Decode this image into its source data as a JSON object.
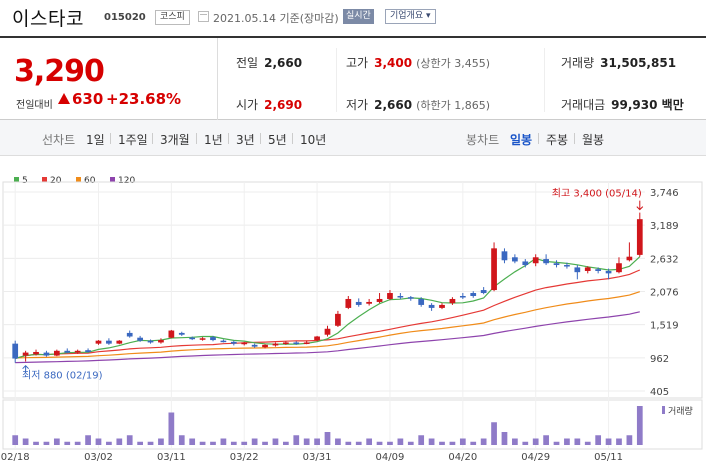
{
  "header": {
    "name": "이스타코",
    "code": "015020",
    "market": "코스피",
    "date": "2021.05.14 기준(장마감)",
    "realtime": "실시간",
    "company_info": "기업개요"
  },
  "quote": {
    "price": "3,290",
    "change_label": "전일대비",
    "change": "630",
    "change_pct": "+23.68%",
    "prev_close_label": "전일",
    "prev_close": "2,660",
    "high_label": "고가",
    "high": "3,400",
    "upper_limit": "(상한가 3,455)",
    "volume_label": "거래량",
    "volume": "31,505,851",
    "open_label": "시가",
    "open": "2,690",
    "low_label": "저가",
    "low": "2,660",
    "lower_limit": "(하한가 1,865)",
    "amount_label": "거래대금",
    "amount": "99,930 백만"
  },
  "tabs": {
    "line_label": "선차트",
    "periods": [
      "1일",
      "1주일",
      "3개월",
      "1년",
      "3년",
      "5년",
      "10년"
    ],
    "candle_label": "봉차트",
    "candle_periods": [
      "일봉",
      "주봉",
      "월봉"
    ],
    "active_candle": "일봉"
  },
  "colors": {
    "up": "#d0161b",
    "down": "#3a68c0",
    "ma5": "#4caf50",
    "ma20": "#e53935",
    "ma60": "#f08c1a",
    "ma120": "#8e44ad",
    "volume": "#8f7bc8"
  },
  "chart_data": {
    "type": "candlestick",
    "legend": [
      "5",
      "20",
      "60",
      "120"
    ],
    "volume_label": "거래량",
    "y_ticks": [
      "3,746",
      "3,189",
      "2,632",
      "2,076",
      "1,519",
      "962",
      "405"
    ],
    "ylim": [
      405,
      3746
    ],
    "x_labels": [
      "02/18",
      "03/02",
      "03/11",
      "03/22",
      "03/31",
      "04/09",
      "04/20",
      "04/29",
      "05/11"
    ],
    "x_label_index": [
      0,
      8,
      15,
      22,
      29,
      36,
      43,
      50,
      57
    ],
    "high_annotation": "최고 3,400 (05/14)",
    "low_annotation": "최저 880 (02/19)",
    "candles": [
      [
        1200,
        950,
        1250,
        880
      ],
      [
        1000,
        1050,
        1080,
        900
      ],
      [
        1020,
        1060,
        1100,
        1000
      ],
      [
        1050,
        1000,
        1080,
        980
      ],
      [
        1000,
        1080,
        1100,
        990
      ],
      [
        1080,
        1050,
        1120,
        1040
      ],
      [
        1050,
        1080,
        1100,
        1030
      ],
      [
        1090,
        1060,
        1120,
        1050
      ],
      [
        1200,
        1250,
        1260,
        1180
      ],
      [
        1250,
        1200,
        1290,
        1180
      ],
      [
        1200,
        1250,
        1260,
        1190
      ],
      [
        1380,
        1320,
        1420,
        1300
      ],
      [
        1300,
        1250,
        1330,
        1230
      ],
      [
        1250,
        1220,
        1270,
        1200
      ],
      [
        1220,
        1260,
        1290,
        1200
      ],
      [
        1300,
        1420,
        1430,
        1290
      ],
      [
        1380,
        1350,
        1400,
        1330
      ],
      [
        1300,
        1280,
        1320,
        1260
      ],
      [
        1270,
        1290,
        1310,
        1250
      ],
      [
        1310,
        1260,
        1330,
        1240
      ],
      [
        1250,
        1240,
        1270,
        1220
      ],
      [
        1230,
        1200,
        1250,
        1170
      ],
      [
        1190,
        1220,
        1230,
        1170
      ],
      [
        1180,
        1150,
        1200,
        1130
      ],
      [
        1140,
        1180,
        1190,
        1120
      ],
      [
        1170,
        1200,
        1220,
        1150
      ],
      [
        1200,
        1220,
        1240,
        1180
      ],
      [
        1220,
        1200,
        1240,
        1180
      ],
      [
        1210,
        1220,
        1250,
        1190
      ],
      [
        1260,
        1320,
        1330,
        1240
      ],
      [
        1350,
        1450,
        1500,
        1320
      ],
      [
        1500,
        1700,
        1750,
        1480
      ],
      [
        1800,
        1950,
        2000,
        1780
      ],
      [
        1900,
        1850,
        1960,
        1820
      ],
      [
        1870,
        1900,
        1950,
        1840
      ],
      [
        1900,
        1950,
        2050,
        1880
      ],
      [
        1950,
        2050,
        2100,
        1930
      ],
      [
        2000,
        1980,
        2050,
        1950
      ],
      [
        1980,
        1960,
        2000,
        1920
      ],
      [
        1950,
        1850,
        1980,
        1820
      ],
      [
        1850,
        1800,
        1880,
        1750
      ],
      [
        1800,
        1850,
        1880,
        1780
      ],
      [
        1880,
        1950,
        1980,
        1850
      ],
      [
        2000,
        1980,
        2050,
        1950
      ],
      [
        2050,
        2000,
        2080,
        1970
      ],
      [
        2100,
        2050,
        2150,
        2030
      ],
      [
        2100,
        2800,
        2900,
        2080
      ],
      [
        2750,
        2600,
        2800,
        2550
      ],
      [
        2650,
        2580,
        2700,
        2550
      ],
      [
        2580,
        2520,
        2620,
        2480
      ],
      [
        2550,
        2650,
        2700,
        2500
      ],
      [
        2620,
        2550,
        2700,
        2520
      ],
      [
        2550,
        2520,
        2600,
        2480
      ],
      [
        2520,
        2500,
        2560,
        2460
      ],
      [
        2480,
        2400,
        2520,
        2280
      ],
      [
        2420,
        2480,
        2500,
        2380
      ],
      [
        2450,
        2420,
        2480,
        2380
      ],
      [
        2420,
        2380,
        2460,
        2280
      ],
      [
        2400,
        2550,
        2650,
        2380
      ],
      [
        2600,
        2660,
        2900,
        2580
      ],
      [
        2690,
        3290,
        3400,
        2660
      ]
    ],
    "volumes": [
      3,
      2,
      1,
      1,
      2,
      1,
      1,
      3,
      2,
      1,
      2,
      3,
      1,
      1,
      2,
      10,
      3,
      2,
      1,
      1,
      2,
      1,
      1,
      2,
      1,
      2,
      1,
      3,
      2,
      2,
      4,
      2,
      1,
      1,
      2,
      1,
      1,
      2,
      1,
      3,
      2,
      1,
      1,
      2,
      1,
      2,
      7,
      4,
      2,
      1,
      2,
      3,
      1,
      2,
      2,
      1,
      3,
      2,
      2,
      3,
      12
    ]
  }
}
